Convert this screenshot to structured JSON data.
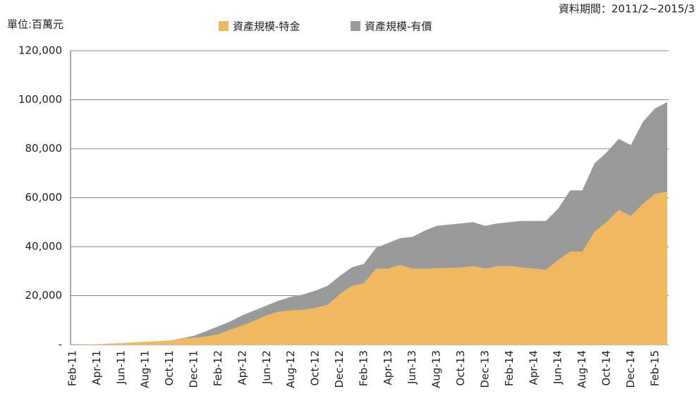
{
  "chart_data": {
    "type": "stacked_area",
    "unit_label": "單位:百萬元",
    "note": "資料期間：2011/2~2015/3",
    "categories": [
      "Feb-11",
      null,
      "Apr-11",
      null,
      "Jun-11",
      null,
      "Aug-11",
      null,
      "Oct-11",
      null,
      "Dec-11",
      null,
      "Feb-12",
      null,
      "Apr-12",
      null,
      "Jun-12",
      null,
      "Aug-12",
      null,
      "Oct-12",
      null,
      "Dec-12",
      null,
      "Feb-13",
      null,
      "Apr-13",
      null,
      "Jun-13",
      null,
      "Aug-13",
      null,
      "Oct-13",
      null,
      "Dec-13",
      null,
      "Feb-14",
      null,
      "Apr-14",
      null,
      "Jun-14",
      null,
      "Aug-14",
      null,
      "Oct-14",
      null,
      "Dec-14",
      null,
      "Feb-15",
      null
    ],
    "series": [
      {
        "name": "資產規模-特金",
        "color": "#f0b860",
        "values": [
          0,
          100,
          200,
          400,
          600,
          900,
          1200,
          1400,
          1700,
          2400,
          2800,
          3300,
          4200,
          6000,
          7800,
          9800,
          12000,
          13500,
          14000,
          14200,
          15000,
          16200,
          20500,
          24000,
          25000,
          31000,
          31000,
          32500,
          31000,
          31000,
          31200,
          31300,
          31500,
          32000,
          31000,
          32000,
          32000,
          31500,
          31000,
          30500,
          34500,
          38000,
          38000,
          46000,
          50000,
          55000,
          52500,
          57500,
          61500,
          62500
        ]
      },
      {
        "name": "資產規模-有價",
        "color": "#9a9a9a",
        "values": [
          0,
          0,
          0,
          0,
          0,
          0,
          0,
          0,
          0,
          200,
          800,
          2200,
          3300,
          3500,
          4200,
          4200,
          4000,
          4500,
          5500,
          6300,
          7000,
          7800,
          7500,
          7500,
          8000,
          8500,
          10500,
          11000,
          13000,
          15500,
          17300,
          17700,
          18000,
          18000,
          17500,
          17500,
          18000,
          19000,
          19500,
          20000,
          21000,
          25000,
          25000,
          28000,
          28500,
          29000,
          29000,
          33500,
          35000,
          36500
        ]
      }
    ],
    "ylim": [
      0,
      120000
    ],
    "yticks": [
      {
        "value": 0,
        "label": "-"
      },
      {
        "value": 20000,
        "label": "20,000"
      },
      {
        "value": 40000,
        "label": "40,000"
      },
      {
        "value": 60000,
        "label": "60,000"
      },
      {
        "value": 80000,
        "label": "80,000"
      },
      {
        "value": 100000,
        "label": "100,000"
      },
      {
        "value": 120000,
        "label": "120,000"
      }
    ],
    "grid": true
  }
}
